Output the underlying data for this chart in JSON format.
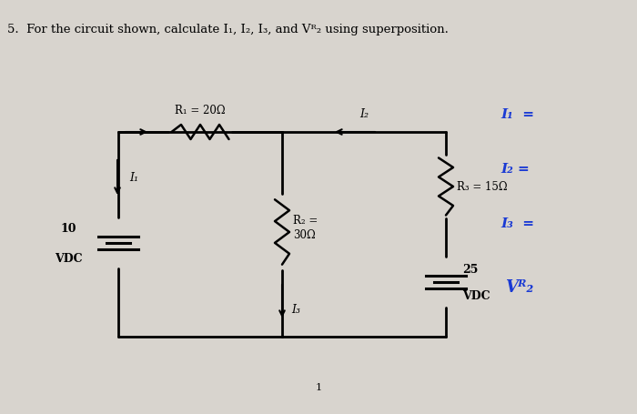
{
  "title": "5.  For the circuit shown, calculate I₁, I₂, I₃, and Vᴿ₂ using superposition.",
  "bg_color": "#d8d4ce",
  "line_color": "#000000",
  "R1_label": "R₁ = 20Ω",
  "R2_label": "R₂ =\n30Ω",
  "R3_label": "R₃ = 15Ω",
  "V1_label": "10\nVDC",
  "V2_label": "25\nVDC",
  "I1_label": "I₁",
  "I2_label": "I₂",
  "I3_label": "I₃",
  "rhs_I1": "I₁  =",
  "rhs_I2": "I₂ =",
  "rhs_I3": "I₃  =",
  "rhs_VR2": "Vᴿ₂"
}
